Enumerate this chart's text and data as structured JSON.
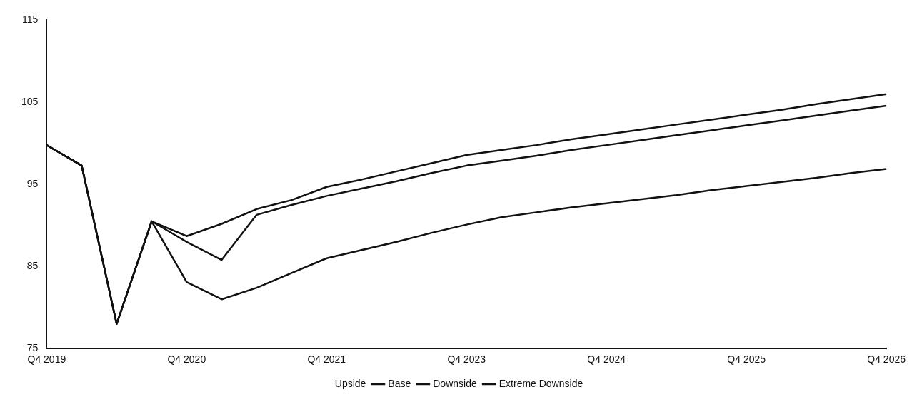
{
  "chart_data": {
    "type": "line",
    "categories": [
      "Q4 2019",
      null,
      null,
      null,
      "Q4 2020",
      null,
      null,
      null,
      "Q4 2021",
      null,
      null,
      null,
      "Q4 2023",
      null,
      null,
      null,
      "Q4 2024",
      null,
      null,
      null,
      "Q4 2025",
      null,
      null,
      null,
      "Q4 2026"
    ],
    "ylim": [
      75,
      115
    ],
    "yticks": [
      75,
      85,
      95,
      105,
      115
    ],
    "grid": false,
    "legend": "bottom",
    "marker": "none",
    "line_style": "solid",
    "series": [
      {
        "name": "Upside",
        "values": [
          null,
          null,
          null,
          null,
          null,
          null,
          null,
          null,
          null,
          null,
          null,
          null,
          null,
          null,
          null,
          null,
          null,
          null,
          null,
          null,
          null,
          null,
          null,
          null,
          null
        ]
      },
      {
        "name": "Base",
        "color": "#111111",
        "values": [
          99.8,
          97.3,
          78,
          90.5,
          88.7,
          90.2,
          92.0,
          93.1,
          94.7,
          95.6,
          96.6,
          97.6,
          98.6,
          99.2,
          99.8,
          100.5,
          101.1,
          101.7,
          102.3,
          102.9,
          103.5,
          104.1,
          104.8,
          105.4,
          106.0
        ]
      },
      {
        "name": "Downside",
        "color": "#111111",
        "values": [
          99.8,
          97.3,
          78,
          90.5,
          88.0,
          85.8,
          91.3,
          92.5,
          93.6,
          94.5,
          95.4,
          96.4,
          97.3,
          97.9,
          98.5,
          99.2,
          99.8,
          100.4,
          101.0,
          101.6,
          102.2,
          102.8,
          103.4,
          104.0,
          104.6
        ]
      },
      {
        "name": "Extreme Downside",
        "color": "#111111",
        "values": [
          99.8,
          97.3,
          78,
          90.5,
          83.1,
          81.0,
          82.4,
          84.2,
          86.0,
          87.0,
          88.0,
          89.1,
          90.1,
          91.0,
          91.6,
          92.2,
          92.7,
          93.2,
          93.7,
          94.3,
          94.8,
          95.3,
          95.8,
          96.4,
          96.9
        ]
      }
    ]
  }
}
